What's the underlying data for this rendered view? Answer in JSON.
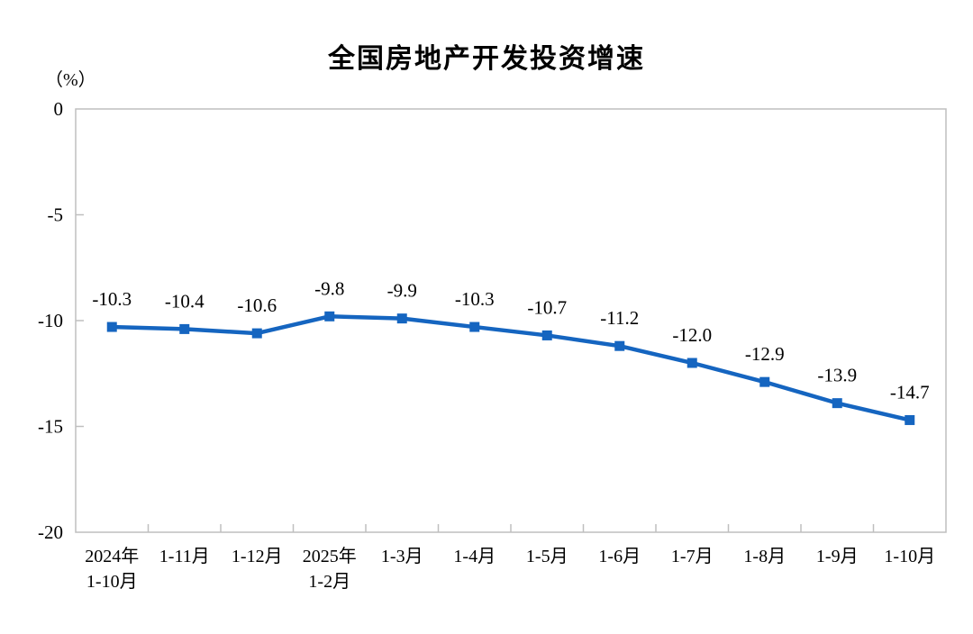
{
  "title": "全国房地产开发投资增速",
  "unit_label": "（%）",
  "colors": {
    "line": "#1565C0",
    "marker": "#1565C0",
    "axis": "#BFBFBF",
    "text": "#000000",
    "background": "#FFFFFF"
  },
  "chart_data": {
    "type": "line",
    "title": "全国房地产开发投资增速",
    "unit": "（%）",
    "categories": [
      "2024年\n1-10月",
      "1-11月",
      "1-12月",
      "2025年\n1-2月",
      "1-3月",
      "1-4月",
      "1-5月",
      "1-6月",
      "1-7月",
      "1-8月",
      "1-9月",
      "1-10月"
    ],
    "series": [
      {
        "name": "全国房地产开发投资增速",
        "values": [
          -10.3,
          -10.4,
          -10.6,
          -9.8,
          -9.9,
          -10.3,
          -10.7,
          -11.2,
          -12.0,
          -12.9,
          -13.9,
          -14.7
        ]
      }
    ],
    "values": [
      -10.3,
      -10.4,
      -10.6,
      -9.8,
      -9.9,
      -10.3,
      -10.7,
      -11.2,
      -12.0,
      -12.9,
      -13.9,
      -14.7
    ],
    "data_labels": [
      "-10.3",
      "-10.4",
      "-10.6",
      "-9.8",
      "-9.9",
      "-10.3",
      "-10.7",
      "-11.2",
      "-12.0",
      "-12.9",
      "-13.9",
      "-14.7"
    ],
    "xlabel": "",
    "ylabel": "（%）",
    "ylim": [
      -20,
      0
    ],
    "yticks": [
      0,
      -5,
      -10,
      -15,
      -20
    ],
    "grid": false,
    "legend_position": "none",
    "marker_shape": "square",
    "show_data_labels": true
  }
}
